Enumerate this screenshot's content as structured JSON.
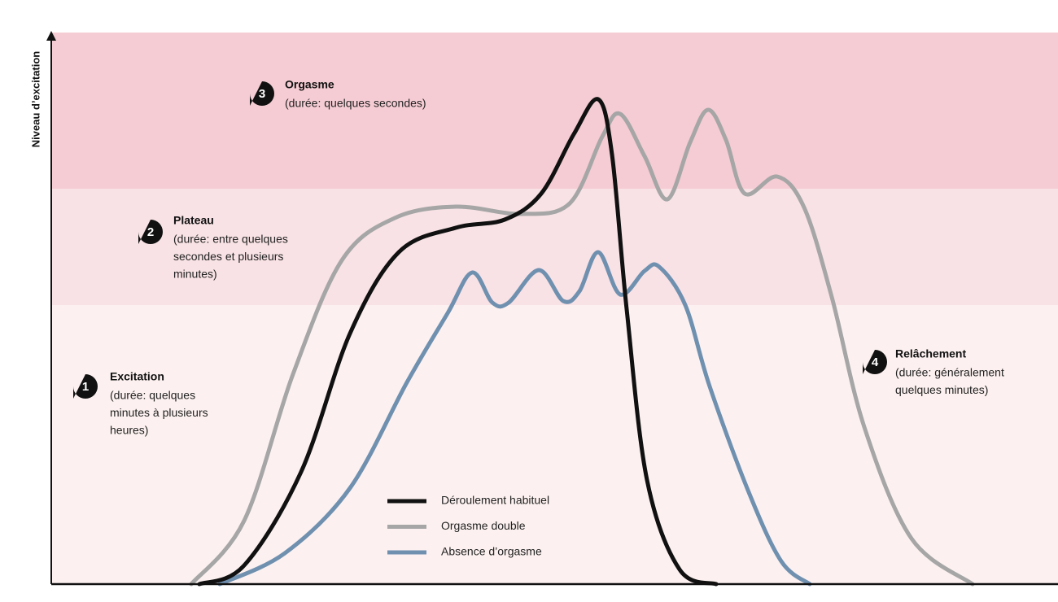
{
  "axis_label": "Niveau d’excitation",
  "phases": [
    {
      "number": "1",
      "title": "Excitation",
      "description": [
        "(durée: quelques",
        "minutes à plusieurs",
        "heures)"
      ]
    },
    {
      "number": "2",
      "title": "Plateau",
      "description": [
        "(durée: entre quelques",
        "secondes et plusieurs",
        "minutes)"
      ]
    },
    {
      "number": "3",
      "title": "Orgasme",
      "description": [
        "(durée: quelques secondes)"
      ]
    },
    {
      "number": "4",
      "title": "Relâchement",
      "description": [
        "(durée: généralement",
        "quelques minutes)"
      ]
    }
  ],
  "legend": [
    {
      "label": "Déroulement habituel",
      "color": "#111111"
    },
    {
      "label": "Orgasme double",
      "color": "#a6a6a6"
    },
    {
      "label": "Absence d’orgasme",
      "color": "#7090b0"
    }
  ]
}
